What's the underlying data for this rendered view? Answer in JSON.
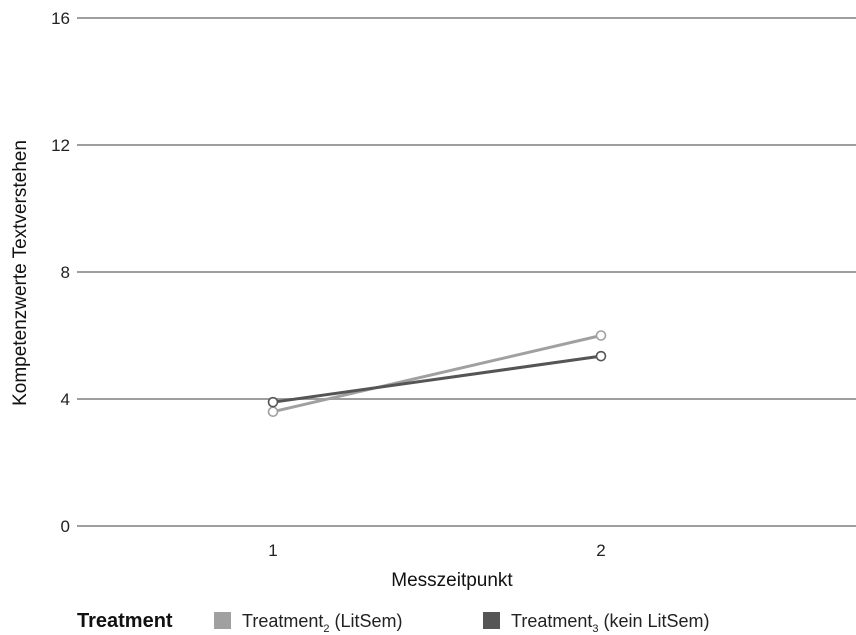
{
  "chart_data": {
    "type": "line",
    "xlabel": "Messzeitpunkt",
    "ylabel": "Kompetenzwerte Textverstehen",
    "categories": [
      "1",
      "2"
    ],
    "ylim": [
      0,
      16
    ],
    "yticks": [
      "0",
      "4",
      "8",
      "12",
      "16"
    ],
    "grid": true,
    "legend_position": "bottom",
    "legend_title": "Treatment",
    "series": [
      {
        "name": "Treatment2 (LitSem)",
        "name_base": "Treatment",
        "name_sub": "2",
        "name_rest": " (LitSem)",
        "values": [
          3.6,
          6.0
        ],
        "color": "#a0a0a0"
      },
      {
        "name": "Treatment3 (kein LitSem)",
        "name_base": "Treatment",
        "name_sub": "3",
        "name_rest": " (kein LitSem)",
        "values": [
          3.9,
          5.35
        ],
        "color": "#555555"
      }
    ]
  }
}
